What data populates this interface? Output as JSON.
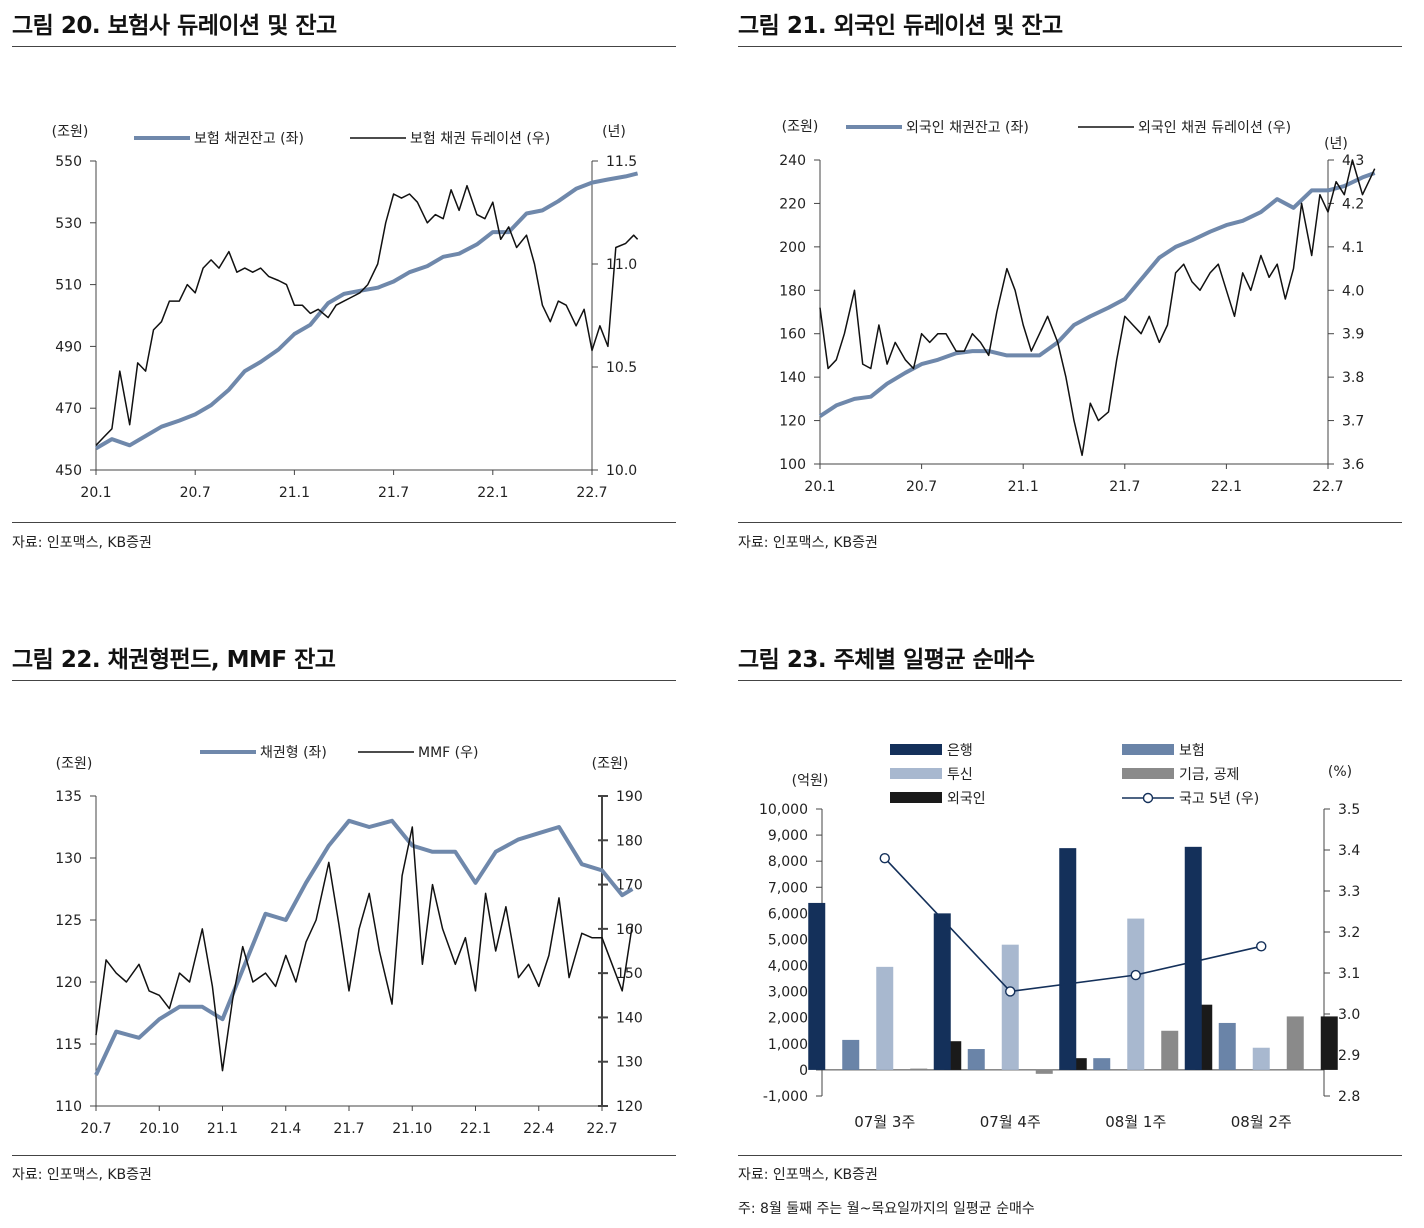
{
  "panels": {
    "p20": {
      "title": "그림 20. 보험사 듀레이션 및 잔고",
      "source": "자료: 인포맥스, KB증권"
    },
    "p21": {
      "title": "그림 21. 외국인 듀레이션 및 잔고",
      "source": "자료: 인포맥스, KB증권"
    },
    "p22": {
      "title": "그림 22. 채권형펀드, MMF 잔고",
      "source": "자료: 인포맥스, KB증권"
    },
    "p23": {
      "title": "그림 23. 주체별 일평균 순매수",
      "source": "자료: 인포맥스, KB증권",
      "note": "주: 8월 둘째 주는 월~목요일까지의 일평균 순매수"
    }
  },
  "colors": {
    "blue_series": "#6f88ab",
    "black_series": "#111111",
    "navy": "#14305a",
    "steel": "#6a84a8",
    "light_blue": "#a8b8cf",
    "gray": "#8a8a8a",
    "black": "#1a1a1a"
  },
  "chart_data": [
    {
      "type": "line",
      "title": "그림 20. 보험사 듀레이션 및 잔고",
      "left_unit": "(조원)",
      "right_unit": "(년)",
      "x_ticks": [
        "20.1",
        "20.7",
        "21.1",
        "21.7",
        "22.1",
        "22.7"
      ],
      "y_left": {
        "ticks": [
          "450",
          "470",
          "490",
          "510",
          "530",
          "550"
        ],
        "lim": [
          450,
          550
        ]
      },
      "y_right": {
        "ticks": [
          "10.0",
          "10.5",
          "11.0",
          "11.5"
        ],
        "lim": [
          10.0,
          11.5
        ]
      },
      "series": [
        {
          "name": "보험 채권잔고 (좌)",
          "axis": "left",
          "color": "#6f88ab",
          "x": [
            2020.0,
            2020.08,
            2020.17,
            2020.25,
            2020.33,
            2020.42,
            2020.5,
            2020.58,
            2020.67,
            2020.75,
            2020.83,
            2020.92,
            2021.0,
            2021.08,
            2021.17,
            2021.25,
            2021.33,
            2021.42,
            2021.5,
            2021.58,
            2021.67,
            2021.75,
            2021.83,
            2021.92,
            2022.0,
            2022.08,
            2022.17,
            2022.25,
            2022.33,
            2022.42,
            2022.5,
            2022.58,
            2022.67,
            2022.73
          ],
          "values": [
            457,
            460,
            458,
            461,
            464,
            466,
            468,
            471,
            476,
            482,
            485,
            489,
            494,
            497,
            504,
            507,
            508,
            509,
            511,
            514,
            516,
            519,
            520,
            523,
            527,
            527,
            533,
            534,
            537,
            541,
            543,
            544,
            545,
            546
          ]
        },
        {
          "name": "보험 채권 듀레이션 (우)",
          "axis": "right",
          "color": "#111111",
          "x": [
            2020.0,
            2020.04,
            2020.08,
            2020.12,
            2020.17,
            2020.21,
            2020.25,
            2020.29,
            2020.33,
            2020.37,
            2020.42,
            2020.46,
            2020.5,
            2020.54,
            2020.58,
            2020.62,
            2020.67,
            2020.71,
            2020.75,
            2020.79,
            2020.83,
            2020.87,
            2020.92,
            2020.96,
            2021.0,
            2021.04,
            2021.08,
            2021.12,
            2021.17,
            2021.21,
            2021.25,
            2021.29,
            2021.33,
            2021.37,
            2021.42,
            2021.46,
            2021.5,
            2021.54,
            2021.58,
            2021.62,
            2021.67,
            2021.71,
            2021.75,
            2021.79,
            2021.83,
            2021.87,
            2021.92,
            2021.96,
            2022.0,
            2022.04,
            2022.08,
            2022.12,
            2022.17,
            2022.21,
            2022.25,
            2022.29,
            2022.33,
            2022.37,
            2022.42,
            2022.46,
            2022.5,
            2022.54,
            2022.58,
            2022.62,
            2022.67,
            2022.71,
            2022.73
          ],
          "values": [
            10.12,
            10.16,
            10.2,
            10.48,
            10.22,
            10.52,
            10.48,
            10.68,
            10.72,
            10.82,
            10.82,
            10.9,
            10.86,
            10.98,
            11.02,
            10.98,
            11.06,
            10.96,
            10.98,
            10.96,
            10.98,
            10.94,
            10.92,
            10.9,
            10.8,
            10.8,
            10.76,
            10.78,
            10.74,
            10.8,
            10.82,
            10.84,
            10.86,
            10.9,
            11.0,
            11.2,
            11.34,
            11.32,
            11.34,
            11.3,
            11.2,
            11.24,
            11.22,
            11.36,
            11.26,
            11.38,
            11.24,
            11.22,
            11.3,
            11.12,
            11.18,
            11.08,
            11.14,
            11.0,
            10.8,
            10.72,
            10.82,
            10.8,
            10.7,
            10.78,
            10.58,
            10.7,
            10.6,
            11.08,
            11.1,
            11.14,
            11.12
          ]
        }
      ]
    },
    {
      "type": "line",
      "title": "그림 21. 외국인 듀레이션 및 잔고",
      "left_unit": "(조원)",
      "right_unit": "(년)",
      "x_ticks": [
        "20.1",
        "20.7",
        "21.1",
        "21.7",
        "22.1",
        "22.7"
      ],
      "y_left": {
        "ticks": [
          "100",
          "120",
          "140",
          "160",
          "180",
          "200",
          "220",
          "240"
        ],
        "lim": [
          100,
          240
        ]
      },
      "y_right": {
        "ticks": [
          "3.6",
          "3.7",
          "3.8",
          "3.9",
          "4.0",
          "4.1",
          "4.2",
          "4.3"
        ],
        "lim": [
          3.6,
          4.3
        ]
      },
      "series": [
        {
          "name": "외국인 채권잔고 (좌)",
          "axis": "left",
          "color": "#6f88ab",
          "x": [
            2020.0,
            2020.08,
            2020.17,
            2020.25,
            2020.33,
            2020.42,
            2020.5,
            2020.58,
            2020.67,
            2020.75,
            2020.83,
            2020.92,
            2021.0,
            2021.08,
            2021.17,
            2021.25,
            2021.33,
            2021.42,
            2021.5,
            2021.58,
            2021.67,
            2021.75,
            2021.83,
            2021.92,
            2022.0,
            2022.08,
            2022.17,
            2022.25,
            2022.33,
            2022.42,
            2022.5,
            2022.58,
            2022.67,
            2022.73
          ],
          "values": [
            122,
            127,
            130,
            131,
            137,
            142,
            146,
            148,
            151,
            152,
            152,
            150,
            150,
            150,
            156,
            164,
            168,
            172,
            176,
            185,
            195,
            200,
            203,
            207,
            210,
            212,
            216,
            222,
            218,
            226,
            226,
            228,
            232,
            234
          ]
        },
        {
          "name": "외국인 채권 듀레이션 (우)",
          "axis": "right",
          "color": "#111111",
          "x": [
            2020.0,
            2020.04,
            2020.08,
            2020.12,
            2020.17,
            2020.21,
            2020.25,
            2020.29,
            2020.33,
            2020.37,
            2020.42,
            2020.46,
            2020.5,
            2020.54,
            2020.58,
            2020.62,
            2020.67,
            2020.71,
            2020.75,
            2020.79,
            2020.83,
            2020.87,
            2020.92,
            2020.96,
            2021.0,
            2021.04,
            2021.08,
            2021.12,
            2021.17,
            2021.21,
            2021.25,
            2021.29,
            2021.33,
            2021.37,
            2021.42,
            2021.46,
            2021.5,
            2021.54,
            2021.58,
            2021.62,
            2021.67,
            2021.71,
            2021.75,
            2021.79,
            2021.83,
            2021.87,
            2021.92,
            2021.96,
            2022.0,
            2022.04,
            2022.08,
            2022.12,
            2022.17,
            2022.21,
            2022.25,
            2022.29,
            2022.33,
            2022.37,
            2022.42,
            2022.46,
            2022.5,
            2022.54,
            2022.58,
            2022.62,
            2022.67,
            2022.71,
            2022.73
          ],
          "values": [
            3.96,
            3.82,
            3.84,
            3.9,
            4.0,
            3.83,
            3.82,
            3.92,
            3.83,
            3.88,
            3.84,
            3.82,
            3.9,
            3.88,
            3.9,
            3.9,
            3.86,
            3.86,
            3.9,
            3.88,
            3.85,
            3.95,
            4.05,
            4.0,
            3.92,
            3.86,
            3.9,
            3.94,
            3.88,
            3.8,
            3.7,
            3.62,
            3.74,
            3.7,
            3.72,
            3.84,
            3.94,
            3.92,
            3.9,
            3.94,
            3.88,
            3.92,
            4.04,
            4.06,
            4.02,
            4.0,
            4.04,
            4.06,
            4.0,
            3.94,
            4.04,
            4.0,
            4.08,
            4.03,
            4.06,
            3.98,
            4.05,
            4.2,
            4.08,
            4.22,
            4.18,
            4.25,
            4.22,
            4.3,
            4.22,
            4.26,
            4.28
          ]
        }
      ]
    },
    {
      "type": "line",
      "title": "그림 22. 채권형펀드, MMF 잔고",
      "left_unit": "(조원)",
      "right_unit": "(조원)",
      "x_ticks": [
        "20.7",
        "20.10",
        "21.1",
        "21.4",
        "21.7",
        "21.10",
        "22.1",
        "22.4",
        "22.7"
      ],
      "y_left": {
        "ticks": [
          "110",
          "115",
          "120",
          "125",
          "130",
          "135"
        ],
        "lim": [
          110,
          135
        ]
      },
      "y_right": {
        "ticks": [
          "120",
          "130",
          "140",
          "150",
          "160",
          "170",
          "180",
          "190"
        ],
        "lim": [
          120,
          190
        ]
      },
      "series": [
        {
          "name": "채권형 (좌)",
          "axis": "left",
          "color": "#6f88ab",
          "x": [
            2020.5,
            2020.58,
            2020.67,
            2020.75,
            2020.83,
            2020.92,
            2021.0,
            2021.08,
            2021.17,
            2021.25,
            2021.33,
            2021.42,
            2021.5,
            2021.58,
            2021.67,
            2021.75,
            2021.83,
            2021.92,
            2022.0,
            2022.08,
            2022.17,
            2022.25,
            2022.33,
            2022.42,
            2022.5,
            2022.58,
            2022.62
          ],
          "values": [
            112.5,
            116,
            115.5,
            117,
            118,
            118,
            117,
            121,
            125.5,
            125,
            128,
            131,
            133,
            132.5,
            133,
            131,
            130.5,
            130.5,
            128,
            130.5,
            131.5,
            132,
            132.5,
            129.5,
            129,
            127,
            127.5
          ]
        },
        {
          "name": "MMF (우)",
          "axis": "right",
          "color": "#111111",
          "x": [
            2020.5,
            2020.54,
            2020.58,
            2020.62,
            2020.67,
            2020.71,
            2020.75,
            2020.79,
            2020.83,
            2020.87,
            2020.92,
            2020.96,
            2021.0,
            2021.04,
            2021.08,
            2021.12,
            2021.17,
            2021.21,
            2021.25,
            2021.29,
            2021.33,
            2021.37,
            2021.42,
            2021.46,
            2021.5,
            2021.54,
            2021.58,
            2021.62,
            2021.67,
            2021.71,
            2021.75,
            2021.79,
            2021.83,
            2021.87,
            2021.92,
            2021.96,
            2022.0,
            2022.04,
            2022.08,
            2022.12,
            2022.17,
            2022.21,
            2022.25,
            2022.29,
            2022.33,
            2022.37,
            2022.42,
            2022.46,
            2022.5,
            2022.54,
            2022.58,
            2022.62
          ],
          "values": [
            136,
            153,
            150,
            148,
            152,
            146,
            145,
            142,
            150,
            148,
            160,
            147,
            128,
            144,
            156,
            148,
            150,
            147,
            154,
            148,
            157,
            162,
            175,
            161,
            146,
            160,
            168,
            155,
            143,
            172,
            183,
            152,
            170,
            160,
            152,
            158,
            146,
            168,
            155,
            165,
            149,
            152,
            147,
            154,
            167,
            149,
            159,
            158,
            158,
            152,
            146,
            161
          ]
        }
      ]
    },
    {
      "type": "bar",
      "title": "그림 23. 주체별 일평균 순매수",
      "left_unit": "(억원)",
      "right_unit": "(%)",
      "categories": [
        "07월 3주",
        "07월 4주",
        "08월 1주",
        "08월 2주"
      ],
      "y_left": {
        "ticks": [
          "-1,000",
          "0",
          "1,000",
          "2,000",
          "3,000",
          "4,000",
          "5,000",
          "6,000",
          "7,000",
          "8,000",
          "9,000",
          "10,000"
        ],
        "lim": [
          -1000,
          10000
        ]
      },
      "y_right": {
        "ticks": [
          "2.8",
          "2.9",
          "3.0",
          "3.1",
          "3.2",
          "3.3",
          "3.4",
          "3.5"
        ],
        "lim": [
          2.8,
          3.5
        ]
      },
      "series": [
        {
          "name": "은행",
          "color": "#14305a",
          "values": [
            6400,
            6000,
            8500,
            8550
          ]
        },
        {
          "name": "보험",
          "color": "#6a84a8",
          "values": [
            1150,
            800,
            450,
            1800
          ]
        },
        {
          "name": "투신",
          "color": "#a8b8cf",
          "values": [
            3950,
            4800,
            5800,
            850
          ]
        },
        {
          "name": "기금, 공제",
          "color": "#8a8a8a",
          "values": [
            50,
            -150,
            1500,
            2050
          ]
        },
        {
          "name": "외국인",
          "color": "#1a1a1a",
          "values": [
            1100,
            450,
            2500,
            2050
          ]
        }
      ],
      "line_series": {
        "name": "국고 5년 (우)",
        "color": "#14305a",
        "values": [
          3.38,
          3.055,
          3.095,
          3.165
        ]
      }
    }
  ]
}
